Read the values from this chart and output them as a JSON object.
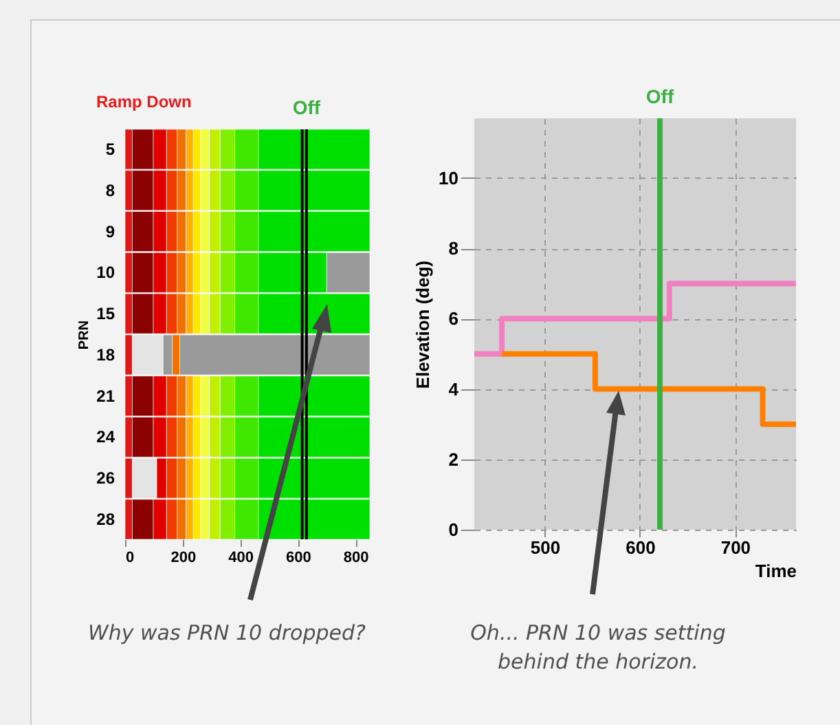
{
  "chart_data": [
    {
      "type": "bar",
      "orientation": "horizontal",
      "stacked": true,
      "ylabel": "PRN",
      "categories": [
        "5",
        "8",
        "9",
        "10",
        "15",
        "18",
        "21",
        "24",
        "26",
        "28"
      ],
      "series": [
        {
          "color": "#e01818",
          "values": [
            25,
            25,
            25,
            25,
            25,
            25,
            25,
            25,
            25,
            25
          ]
        },
        {
          "color": "#e4e4e4",
          "values": [
            null,
            null,
            null,
            null,
            null,
            107,
            null,
            null,
            85,
            null
          ]
        },
        {
          "color": "#9a9a9a",
          "values": [
            null,
            null,
            null,
            null,
            null,
            32,
            null,
            null,
            null,
            null
          ]
        },
        {
          "color": "#8b0000",
          "values": [
            73,
            73,
            73,
            73,
            73,
            null,
            73,
            73,
            null,
            73
          ]
        },
        {
          "color": "#e00000",
          "values": [
            46,
            46,
            46,
            46,
            46,
            null,
            46,
            46,
            34,
            46
          ]
        },
        {
          "color": "#f03c00",
          "values": [
            37,
            37,
            37,
            37,
            37,
            null,
            37,
            37,
            37,
            37
          ]
        },
        {
          "color": "#f07000",
          "values": [
            31,
            31,
            31,
            31,
            31,
            26,
            31,
            31,
            31,
            31
          ]
        },
        {
          "color": "#ffb000",
          "values": [
            25,
            25,
            25,
            25,
            25,
            null,
            25,
            25,
            25,
            25
          ]
        },
        {
          "color": "#ffe800",
          "values": [
            26,
            26,
            26,
            26,
            26,
            null,
            26,
            26,
            26,
            26
          ]
        },
        {
          "color": "#f0ff40",
          "values": [
            30,
            30,
            30,
            30,
            30,
            null,
            30,
            30,
            30,
            30
          ]
        },
        {
          "color": "#c0f000",
          "values": [
            37,
            37,
            37,
            37,
            37,
            null,
            37,
            37,
            37,
            37
          ]
        },
        {
          "color": "#80f000",
          "values": [
            51,
            51,
            51,
            51,
            51,
            null,
            51,
            51,
            51,
            51
          ]
        },
        {
          "color": "#40e800",
          "values": [
            82,
            82,
            82,
            82,
            82,
            null,
            82,
            82,
            82,
            82
          ]
        },
        {
          "color": "#00e000",
          "values": [
            387,
            387,
            387,
            237,
            387,
            null,
            387,
            387,
            387,
            387
          ]
        },
        {
          "color": "#9a9a9a",
          "values": [
            null,
            null,
            null,
            150,
            null,
            660,
            null,
            null,
            null,
            null
          ]
        }
      ],
      "xlim": [
        0,
        850
      ],
      "xticks": [
        0,
        200,
        400,
        600,
        800
      ],
      "legend": false,
      "ref_lines": [
        {
          "axis": "x",
          "value": 615,
          "color": "#000000"
        },
        {
          "axis": "x",
          "value": 630,
          "color": "#000000",
          "label": "Off"
        }
      ],
      "annotations": [
        "Ramp Down",
        "Why was PRN 10 dropped?"
      ]
    },
    {
      "type": "step",
      "xlabel": "Time",
      "ylabel": "Elevation (deg)",
      "series": [
        {
          "color": "#f080c0",
          "x": [
            426,
            455,
            631,
            764
          ],
          "values": [
            5,
            6,
            7,
            7
          ]
        },
        {
          "color": "#ff8000",
          "x": [
            455,
            553,
            729,
            764
          ],
          "values": [
            5,
            4,
            3,
            3
          ]
        }
      ],
      "xlim": [
        426,
        764
      ],
      "xticks": [
        500,
        600,
        700
      ],
      "ylim": [
        0,
        11.7
      ],
      "yticks": [
        0,
        2,
        4,
        6,
        8,
        10
      ],
      "grid": true,
      "legend": false,
      "ref_lines": [
        {
          "axis": "x",
          "value": 621,
          "color": "#3cb043",
          "label": "Off"
        }
      ],
      "annotations": [
        "Oh... PRN 10 was setting behind the horizon."
      ]
    }
  ]
}
